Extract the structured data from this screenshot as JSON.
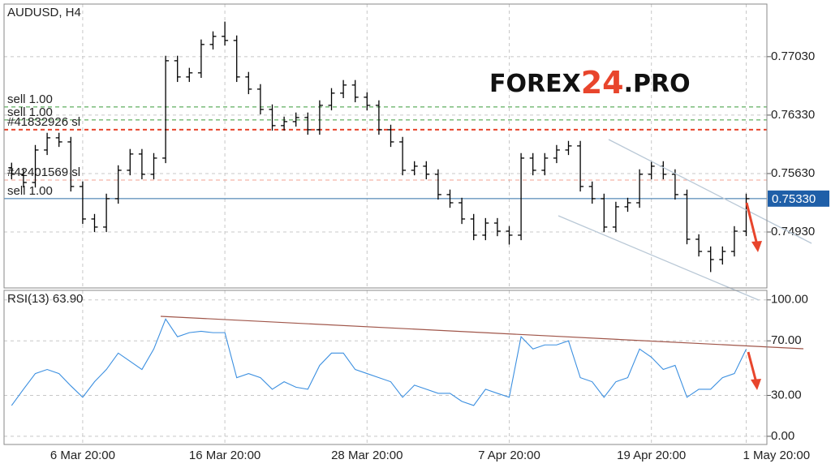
{
  "chart_data": [
    {
      "type": "ohlc",
      "title": "AUDUSD, H4",
      "logo": [
        "FOREX",
        "24",
        ".PRO"
      ],
      "categories": [
        null,
        null,
        null,
        null,
        null,
        null,
        "6 Mar 20:00",
        null,
        null,
        null,
        null,
        null,
        null,
        null,
        null,
        null,
        null,
        null,
        "16 Mar 20:00",
        null,
        null,
        null,
        null,
        null,
        null,
        null,
        null,
        null,
        null,
        null,
        "28 Mar 20:00",
        null,
        null,
        null,
        null,
        null,
        null,
        null,
        null,
        null,
        null,
        null,
        "7 Apr 20:00",
        null,
        null,
        null,
        null,
        null,
        null,
        null,
        null,
        null,
        null,
        null,
        "19 Apr 20:00",
        null,
        null,
        null,
        null,
        null,
        null,
        null,
        "1 May 20:00"
      ],
      "open": [
        0.757,
        0.75621,
        0.75523,
        0.75912,
        0.76058,
        0.76009,
        0.75475,
        0.75086,
        0.74989,
        0.75329,
        0.75669,
        0.75864,
        0.75621,
        0.75815,
        0.76981,
        0.76787,
        0.76836,
        0.77176,
        0.77273,
        0.77224,
        0.76787,
        0.76641,
        0.76398,
        0.76204,
        0.76252,
        0.76301,
        0.76155,
        0.76447,
        0.76593,
        0.7669,
        0.76544,
        0.76447,
        0.76155,
        0.76009,
        0.75669,
        0.75718,
        0.75621,
        0.75378,
        0.7528,
        0.75086,
        0.74892,
        0.75037,
        0.7494,
        0.74892,
        0.75815,
        0.75669,
        0.75815,
        0.75912,
        0.75961,
        0.75475,
        0.75329,
        0.74989,
        0.75232,
        0.7528,
        0.75621,
        0.75718,
        0.75621,
        0.75378,
        0.74843,
        0.74697,
        0.746,
        0.74697,
        0.7494
      ],
      "high": [
        0.7576,
        0.75681,
        0.75972,
        0.76118,
        0.76118,
        0.76069,
        0.75535,
        0.75146,
        0.75389,
        0.75729,
        0.75924,
        0.75924,
        0.75875,
        0.77041,
        0.77041,
        0.76896,
        0.77236,
        0.77333,
        0.7745,
        0.77284,
        0.76847,
        0.76701,
        0.76458,
        0.76312,
        0.76361,
        0.76361,
        0.76507,
        0.76653,
        0.7675,
        0.7675,
        0.76604,
        0.76507,
        0.76215,
        0.76069,
        0.75778,
        0.75778,
        0.75681,
        0.75438,
        0.7534,
        0.75146,
        0.75097,
        0.75097,
        0.75,
        0.75875,
        0.75875,
        0.75875,
        0.75972,
        0.76021,
        0.76021,
        0.75535,
        0.75389,
        0.75292,
        0.7534,
        0.75681,
        0.75778,
        0.75778,
        0.75681,
        0.75438,
        0.74903,
        0.74757,
        0.74757,
        0.75,
        0.75389
      ],
      "low": [
        0.75561,
        0.75463,
        0.75463,
        0.75852,
        0.75949,
        0.75415,
        0.75026,
        0.74929,
        0.74929,
        0.75269,
        0.75609,
        0.75561,
        0.75561,
        0.75755,
        0.76727,
        0.76727,
        0.76776,
        0.77116,
        0.77164,
        0.76727,
        0.76581,
        0.76338,
        0.76144,
        0.76144,
        0.76192,
        0.76095,
        0.76095,
        0.76387,
        0.76533,
        0.76484,
        0.76387,
        0.76095,
        0.75949,
        0.75609,
        0.75609,
        0.75561,
        0.75318,
        0.7522,
        0.75026,
        0.74832,
        0.74832,
        0.7488,
        0.7478,
        0.74832,
        0.75609,
        0.75609,
        0.75755,
        0.75852,
        0.75415,
        0.75269,
        0.74929,
        0.74929,
        0.75172,
        0.7522,
        0.75561,
        0.75561,
        0.75318,
        0.74783,
        0.74637,
        0.7445,
        0.7454,
        0.74637,
        0.7488
      ],
      "close": [
        0.75621,
        0.75523,
        0.75912,
        0.76058,
        0.76009,
        0.75475,
        0.75086,
        0.74989,
        0.75329,
        0.75669,
        0.75864,
        0.75621,
        0.75815,
        0.76981,
        0.76787,
        0.76836,
        0.77176,
        0.77273,
        0.77224,
        0.76787,
        0.76641,
        0.76398,
        0.76204,
        0.76252,
        0.76301,
        0.76155,
        0.76447,
        0.76593,
        0.7669,
        0.76544,
        0.76447,
        0.76155,
        0.76009,
        0.75669,
        0.75718,
        0.75621,
        0.75378,
        0.7528,
        0.75086,
        0.74892,
        0.75037,
        0.7494,
        0.74892,
        0.75815,
        0.75669,
        0.75815,
        0.75912,
        0.75961,
        0.75475,
        0.75329,
        0.74989,
        0.75232,
        0.7528,
        0.75621,
        0.75718,
        0.75621,
        0.75378,
        0.74843,
        0.74697,
        0.746,
        0.74697,
        0.7494,
        0.75329
      ],
      "color": "#000000",
      "ylim": [
        0.7426,
        0.7766
      ],
      "yticks": [
        {
          "value": 0.7703,
          "label": "0.77030"
        },
        {
          "value": 0.7633,
          "label": "0.76330"
        },
        {
          "value": 0.7563,
          "label": "0.75630"
        },
        {
          "value": 0.7493,
          "label": "0.74930"
        }
      ],
      "grid": true,
      "levels": [
        {
          "label": "sell 1.00",
          "value": 0.76427,
          "color": "#3a9a3a"
        },
        {
          "label": "sell 1.00",
          "value": 0.76272,
          "color": "#3a9a3a"
        },
        {
          "label": "#41832926 sl",
          "value": 0.76155,
          "color": "#e8452c"
        },
        {
          "label": "#42401569 sl",
          "value": 0.75552,
          "color": "#f0a090"
        },
        {
          "label": "sell 1.00",
          "value": 0.7533,
          "color": "#2f6fa8"
        }
      ],
      "current_price": {
        "value": 0.7533,
        "label": "0.75330",
        "color": "#1f5fa8"
      }
    },
    {
      "type": "line",
      "title": "RSI(13) 63.90",
      "series": [
        {
          "color": "#3b8fe0",
          "values": [
            22.6,
            34.5,
            46,
            49,
            46,
            37,
            28.6,
            40,
            49,
            61,
            55,
            49,
            64,
            86,
            73,
            76,
            77,
            76,
            76,
            43,
            46,
            43,
            34.5,
            40,
            36,
            34.5,
            52,
            61,
            61,
            49,
            46,
            43,
            40,
            28.6,
            37.5,
            34.5,
            31.5,
            31.5,
            25.6,
            22.6,
            34.5,
            31.5,
            28.6,
            73,
            64,
            67,
            67,
            70,
            43,
            40,
            28.6,
            40,
            43,
            64,
            58,
            49,
            52,
            28.6,
            34.5,
            34.5,
            43,
            46,
            63.9
          ]
        }
      ],
      "ylim": [
        -6,
        107
      ],
      "yticks": [
        {
          "value": 100,
          "label": "100.00"
        },
        {
          "value": 70,
          "label": "70.00"
        },
        {
          "value": 30,
          "label": "30.00"
        },
        {
          "value": 0,
          "label": "0.00"
        }
      ],
      "grid": true
    }
  ]
}
